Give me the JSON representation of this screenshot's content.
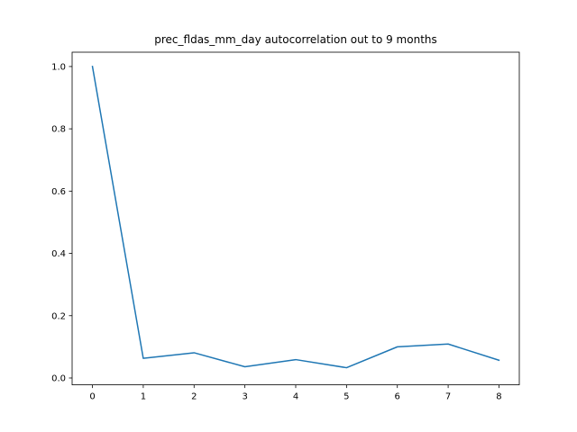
{
  "chart_data": {
    "type": "line",
    "title": "prec_fldas_mm_day autocorrelation out to 9 months",
    "xlabel": "",
    "ylabel": "",
    "x": [
      0,
      1,
      2,
      3,
      4,
      5,
      6,
      7,
      8
    ],
    "series": [
      {
        "values": [
          1.0,
          0.063,
          0.081,
          0.036,
          0.059,
          0.033,
          0.1,
          0.109,
          0.057
        ],
        "color": "#1f77b4"
      }
    ],
    "xlim": [
      -0.4,
      8.4
    ],
    "ylim": [
      -0.022,
      1.046
    ],
    "xticks": [
      "0",
      "1",
      "2",
      "3",
      "4",
      "5",
      "6",
      "7",
      "8"
    ],
    "yticks": [
      "0.0",
      "0.2",
      "0.4",
      "0.6",
      "0.8",
      "1.0"
    ],
    "grid": false,
    "legend": "none"
  }
}
